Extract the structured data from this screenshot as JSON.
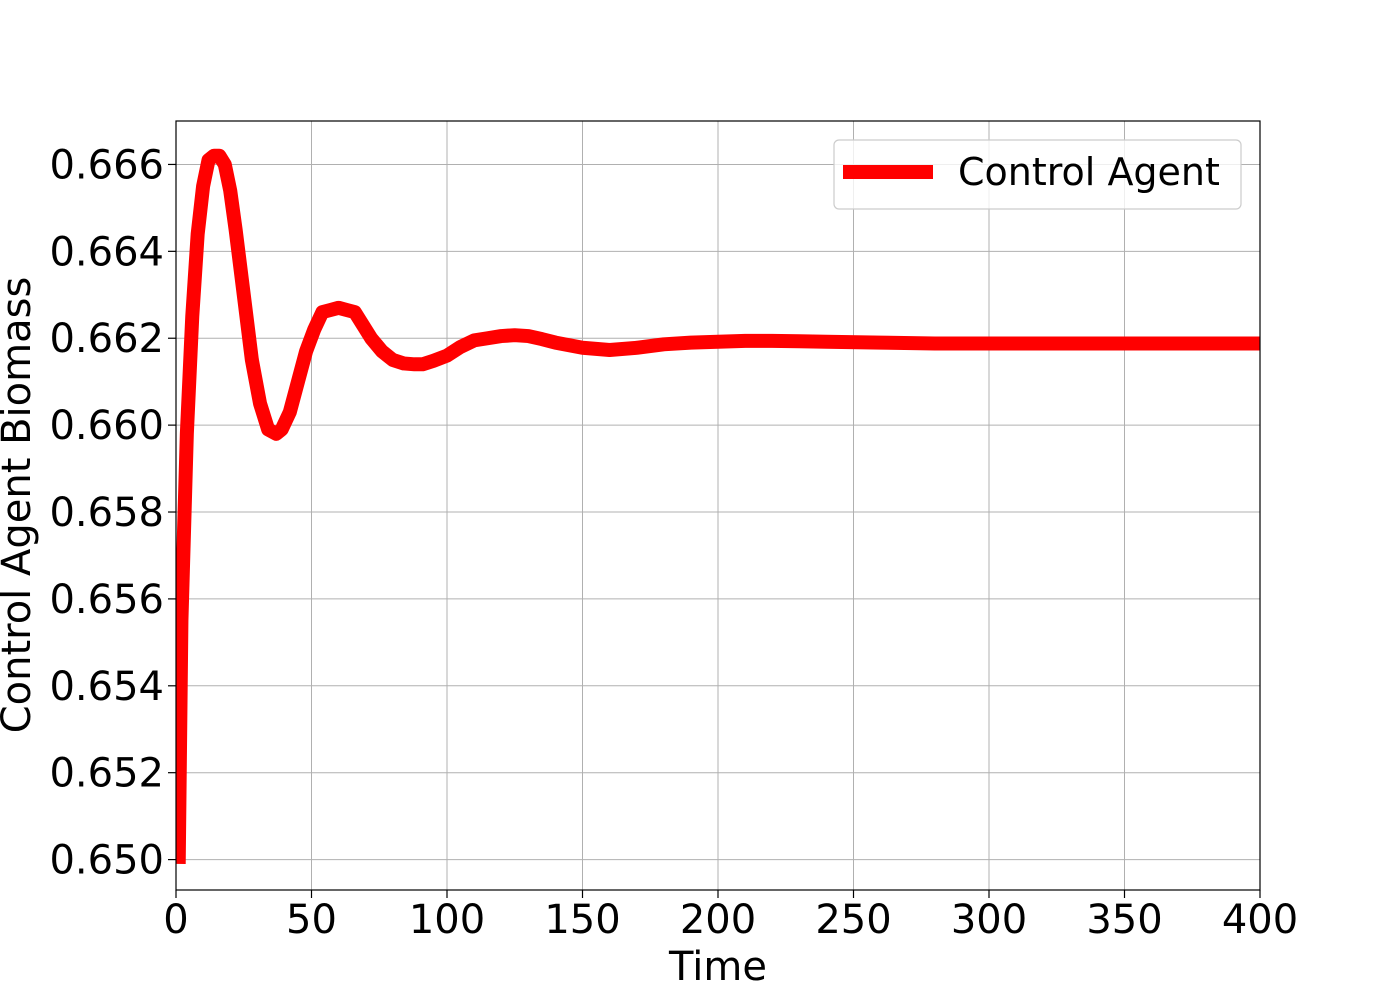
{
  "chart_data": {
    "type": "line",
    "xlabel": "Time",
    "ylabel": "Control Agent Biomass",
    "xlim": [
      0,
      400
    ],
    "ylim": [
      0.6493,
      0.667
    ],
    "xticks": [
      0,
      50,
      100,
      150,
      200,
      250,
      300,
      350,
      400
    ],
    "xtick_labels": [
      "0",
      "50",
      "100",
      "150",
      "200",
      "250",
      "300",
      "350",
      "400"
    ],
    "yticks": [
      0.65,
      0.652,
      0.654,
      0.656,
      0.658,
      0.66,
      0.662,
      0.664,
      0.666
    ],
    "ytick_labels": [
      "0.650",
      "0.652",
      "0.654",
      "0.656",
      "0.658",
      "0.660",
      "0.662",
      "0.664",
      "0.666"
    ],
    "grid": true,
    "legend_position": "top-right",
    "series": [
      {
        "name": "Control Agent",
        "color": "#ff0000",
        "x": [
          1,
          2,
          4,
          6,
          8,
          10,
          12,
          14,
          16,
          18,
          20,
          22,
          25,
          28,
          31,
          34,
          37,
          39,
          42,
          45,
          48,
          51,
          54,
          57,
          60,
          63,
          66,
          69,
          72,
          76,
          80,
          84,
          88,
          91,
          95,
          100,
          105,
          110,
          115,
          120,
          125,
          130,
          135,
          140,
          150,
          160,
          170,
          180,
          190,
          200,
          210,
          220,
          230,
          240,
          260,
          280,
          300,
          350,
          400
        ],
        "y": [
          0.6499,
          0.6555,
          0.6598,
          0.6625,
          0.6644,
          0.6655,
          0.6661,
          0.6662,
          0.6662,
          0.666,
          0.6654,
          0.6645,
          0.663,
          0.6615,
          0.6605,
          0.6599,
          0.6598,
          0.6599,
          0.6603,
          0.661,
          0.6617,
          0.6622,
          0.6626,
          0.66265,
          0.6627,
          0.66265,
          0.6626,
          0.6623,
          0.662,
          0.6617,
          0.6615,
          0.66142,
          0.6614,
          0.6614,
          0.66148,
          0.6616,
          0.6618,
          0.66195,
          0.662,
          0.66205,
          0.66207,
          0.66205,
          0.66198,
          0.6619,
          0.66178,
          0.66173,
          0.66178,
          0.66186,
          0.6619,
          0.66192,
          0.66194,
          0.66194,
          0.66193,
          0.66192,
          0.6619,
          0.66188,
          0.66188,
          0.66188,
          0.66188
        ]
      }
    ]
  }
}
